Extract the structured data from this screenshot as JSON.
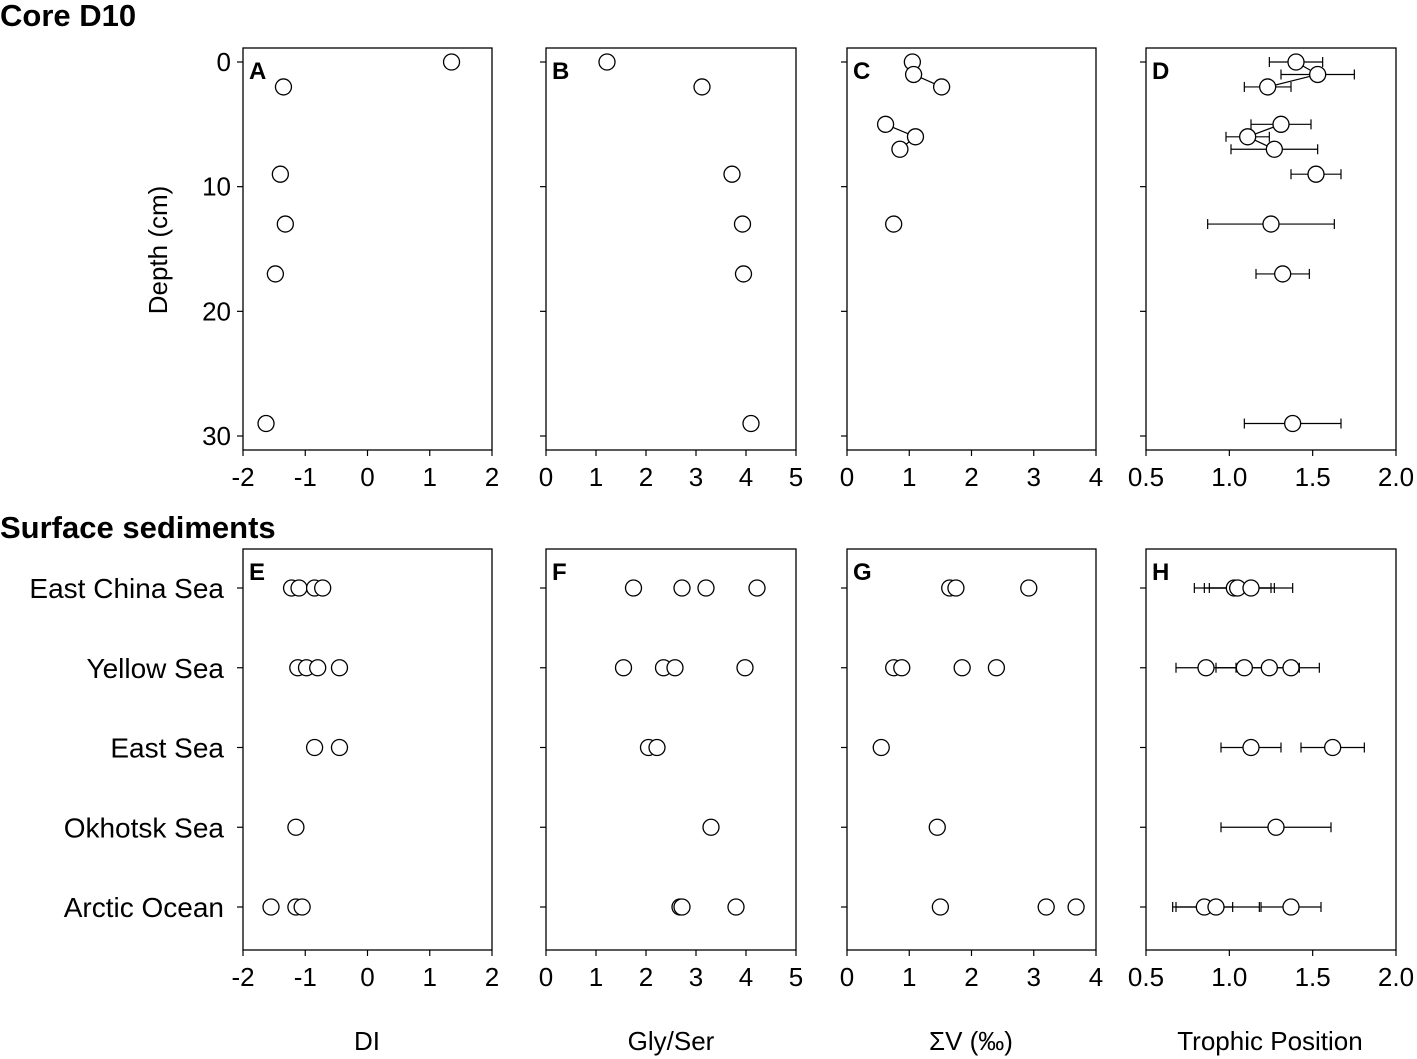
{
  "sections": {
    "top_title": "Core D10",
    "bottom_title": "Surface sediments"
  },
  "axis_titles": {
    "depth": "Depth (cm)",
    "DI": "DI",
    "gly_ser": "Gly/Ser",
    "sum_v": "ΣV (‰)",
    "trophic": "Trophic Position"
  },
  "chart_data": [
    {
      "panel": "A",
      "type": "scatter",
      "row": "core",
      "xkey": "DI",
      "xlim": [
        -2,
        2
      ],
      "xticks": [
        "-2",
        "-1",
        "0",
        "1",
        "2"
      ],
      "ylim": [
        0,
        30
      ],
      "yticks": [
        "0",
        "10",
        "20",
        "30"
      ],
      "ylabel": "Depth (cm)",
      "points": [
        [
          1.35,
          0
        ],
        [
          -1.35,
          2
        ],
        [
          -1.4,
          9
        ],
        [
          -1.32,
          13
        ],
        [
          -1.48,
          17
        ],
        [
          -1.63,
          29
        ]
      ]
    },
    {
      "panel": "B",
      "type": "scatter",
      "row": "core",
      "xkey": "gly_ser",
      "xlim": [
        0,
        5
      ],
      "xticks": [
        "0",
        "1",
        "2",
        "3",
        "4",
        "5"
      ],
      "ylim": [
        0,
        30
      ],
      "points": [
        [
          1.22,
          0
        ],
        [
          3.12,
          2
        ],
        [
          3.72,
          9
        ],
        [
          3.93,
          13
        ],
        [
          3.95,
          17
        ],
        [
          4.1,
          29
        ]
      ]
    },
    {
      "panel": "C",
      "type": "line",
      "row": "core",
      "xkey": "sum_v",
      "xlim": [
        0,
        4
      ],
      "xticks": [
        "0",
        "1",
        "2",
        "3",
        "4"
      ],
      "ylim": [
        0,
        30
      ],
      "points": [
        [
          1.05,
          0
        ],
        [
          1.07,
          1
        ],
        [
          1.52,
          2
        ],
        [
          0.62,
          5
        ],
        [
          1.1,
          6
        ],
        [
          0.85,
          7
        ],
        [
          0.75,
          13
        ]
      ],
      "segments": [
        [
          0,
          1
        ],
        [
          1,
          2
        ],
        [
          3,
          4
        ],
        [
          4,
          5
        ]
      ]
    },
    {
      "panel": "D",
      "type": "line",
      "row": "core",
      "xkey": "trophic",
      "xlim": [
        0.5,
        2.0
      ],
      "xticks": [
        "0.5",
        "1.0",
        "1.5",
        "2.0"
      ],
      "ylim": [
        0,
        30
      ],
      "points": [
        {
          "x": 1.4,
          "y": 0,
          "err": 0.16
        },
        {
          "x": 1.53,
          "y": 1,
          "err": 0.22
        },
        {
          "x": 1.23,
          "y": 2,
          "err": 0.14
        },
        {
          "x": 1.31,
          "y": 5,
          "err": 0.18
        },
        {
          "x": 1.11,
          "y": 6,
          "err": 0.13
        },
        {
          "x": 1.27,
          "y": 7,
          "err": 0.26
        },
        {
          "x": 1.52,
          "y": 9,
          "err": 0.15
        },
        {
          "x": 1.25,
          "y": 13,
          "err": 0.38
        },
        {
          "x": 1.32,
          "y": 17,
          "err": 0.16
        },
        {
          "x": 1.38,
          "y": 29,
          "err": 0.29
        }
      ],
      "segments": [
        [
          0,
          1
        ],
        [
          1,
          2
        ],
        [
          3,
          4
        ],
        [
          4,
          5
        ]
      ]
    },
    {
      "panel": "E",
      "type": "scatter",
      "row": "surface",
      "xkey": "DI",
      "xlim": [
        -2,
        2
      ],
      "xticks": [
        "-2",
        "-1",
        "0",
        "1",
        "2"
      ],
      "categories": [
        "East China Sea",
        "Yellow Sea",
        "East Sea",
        "Okhotsk Sea",
        "Arctic Ocean"
      ],
      "points": [
        [
          -1.22,
          0
        ],
        [
          -1.1,
          0
        ],
        [
          -0.85,
          0
        ],
        [
          -0.72,
          0
        ],
        [
          -1.12,
          1
        ],
        [
          -0.98,
          1
        ],
        [
          -0.8,
          1
        ],
        [
          -0.45,
          1
        ],
        [
          -0.85,
          2
        ],
        [
          -0.45,
          2
        ],
        [
          -1.15,
          3
        ],
        [
          -1.55,
          4
        ],
        [
          -1.15,
          4
        ],
        [
          -1.05,
          4
        ]
      ]
    },
    {
      "panel": "F",
      "type": "scatter",
      "row": "surface",
      "xkey": "gly_ser",
      "xlim": [
        0,
        5
      ],
      "xticks": [
        "0",
        "1",
        "2",
        "3",
        "4",
        "5"
      ],
      "points": [
        [
          1.75,
          0
        ],
        [
          2.72,
          0
        ],
        [
          3.2,
          0
        ],
        [
          4.22,
          0
        ],
        [
          1.55,
          1
        ],
        [
          2.35,
          1
        ],
        [
          2.58,
          1
        ],
        [
          3.98,
          1
        ],
        [
          2.05,
          2
        ],
        [
          2.22,
          2
        ],
        [
          3.3,
          3
        ],
        [
          2.68,
          4
        ],
        [
          2.72,
          4
        ],
        [
          3.8,
          4
        ]
      ]
    },
    {
      "panel": "G",
      "type": "scatter",
      "row": "surface",
      "xkey": "sum_v",
      "xlim": [
        0,
        4
      ],
      "xticks": [
        "0",
        "1",
        "2",
        "3",
        "4"
      ],
      "points": [
        [
          1.65,
          0
        ],
        [
          1.75,
          0
        ],
        [
          2.92,
          0
        ],
        [
          0.75,
          1
        ],
        [
          0.88,
          1
        ],
        [
          1.85,
          1
        ],
        [
          2.4,
          1
        ],
        [
          0.55,
          2
        ],
        [
          1.45,
          3
        ],
        [
          1.5,
          4
        ],
        [
          3.2,
          4
        ],
        [
          3.68,
          4
        ]
      ]
    },
    {
      "panel": "H",
      "type": "scatter",
      "row": "surface",
      "xkey": "trophic",
      "xlim": [
        0.5,
        2.0
      ],
      "xticks": [
        "0.5",
        "1.0",
        "1.5",
        "2.0"
      ],
      "points": [
        {
          "x": 1.03,
          "y": 0,
          "err": 0.24
        },
        {
          "x": 1.05,
          "y": 0,
          "err": 0.2
        },
        {
          "x": 1.13,
          "y": 0,
          "err": 0.25
        },
        {
          "x": 0.86,
          "y": 1,
          "err": 0.18
        },
        {
          "x": 1.09,
          "y": 1,
          "err": 0.17
        },
        {
          "x": 1.24,
          "y": 1,
          "err": 0.18
        },
        {
          "x": 1.37,
          "y": 1,
          "err": 0.17
        },
        {
          "x": 1.13,
          "y": 2,
          "err": 0.18
        },
        {
          "x": 1.62,
          "y": 2,
          "err": 0.19
        },
        {
          "x": 1.28,
          "y": 3,
          "err": 0.33
        },
        {
          "x": 0.85,
          "y": 4,
          "err": 0.17
        },
        {
          "x": 0.92,
          "y": 4,
          "err": 0.26
        },
        {
          "x": 1.37,
          "y": 4,
          "err": 0.18
        }
      ]
    }
  ]
}
